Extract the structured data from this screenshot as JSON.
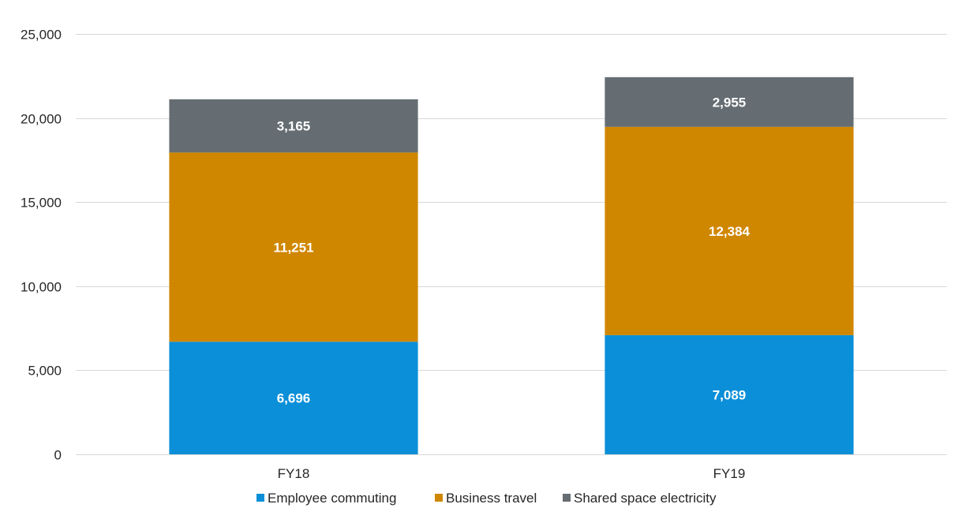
{
  "chart_data": {
    "type": "bar",
    "stacked": true,
    "categories": [
      "FY18",
      "FY19"
    ],
    "series": [
      {
        "name": "Employee commuting",
        "color": "#0a8fd8",
        "values": [
          6696,
          7089
        ],
        "labels": [
          "6,696",
          "7,089"
        ]
      },
      {
        "name": "Business travel",
        "color": "#d08700",
        "values": [
          11251,
          12384
        ],
        "labels": [
          "11,251",
          "12,384"
        ]
      },
      {
        "name": "Shared space electricity",
        "color": "#656d72",
        "values": [
          3165,
          2955
        ],
        "labels": [
          "3,165",
          "2,955"
        ]
      }
    ],
    "ylim": [
      0,
      25000
    ],
    "yticks": [
      0,
      5000,
      10000,
      15000,
      20000,
      25000
    ],
    "ytick_labels": [
      "0",
      "5,000",
      "10,000",
      "15,000",
      "20,000",
      "25,000"
    ],
    "grid": true,
    "legend_position": "bottom",
    "title": "",
    "xlabel": "",
    "ylabel": ""
  }
}
